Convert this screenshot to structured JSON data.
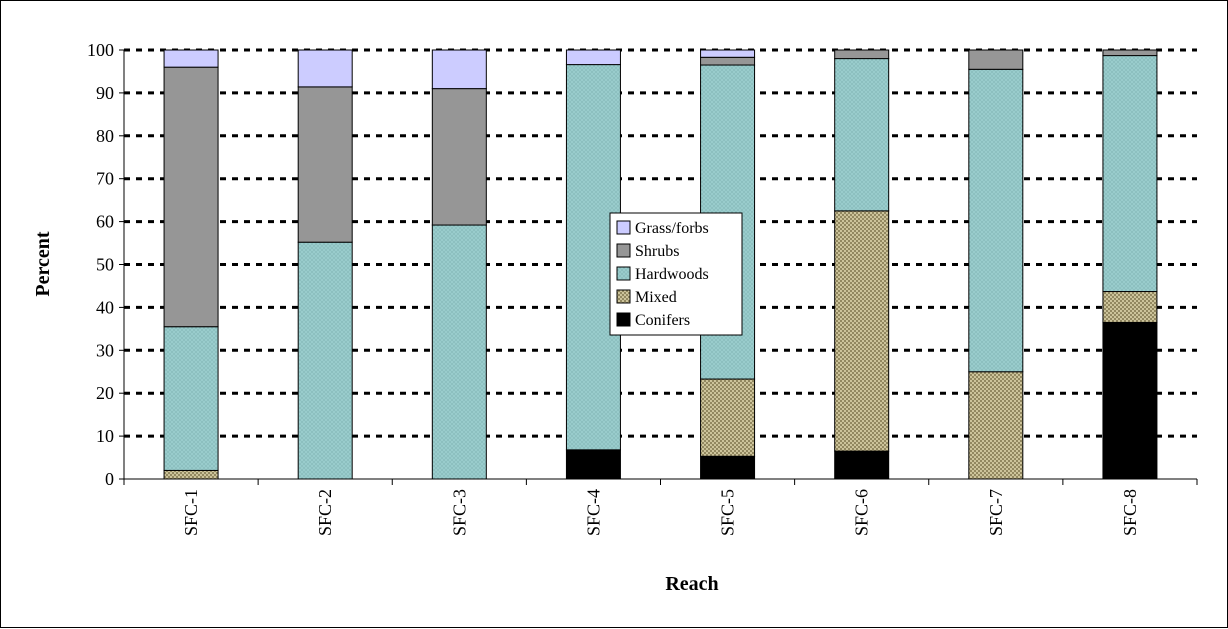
{
  "chart_data": {
    "type": "bar",
    "stacked": true,
    "xlabel": "Reach",
    "ylabel": "Percent",
    "ylim": [
      0,
      100
    ],
    "yticks": [
      0,
      10,
      20,
      30,
      40,
      50,
      60,
      70,
      80,
      90,
      100
    ],
    "grid": "horizontal-dotted",
    "legend_position": "center",
    "categories": [
      "SFC-1",
      "SFC-2",
      "SFC-3",
      "SFC-4",
      "SFC-5",
      "SFC-6",
      "SFC-7",
      "SFC-8"
    ],
    "series": [
      {
        "name": "Conifers",
        "color": "#000000",
        "pattern": "solid",
        "values": [
          0,
          0,
          0,
          6.8,
          5.3,
          6.5,
          0,
          36.5
        ]
      },
      {
        "name": "Mixed",
        "color": "#d8cfa6",
        "pattern": "crosshatch",
        "values": [
          2.0,
          0,
          0,
          0,
          18.0,
          56.0,
          25.0,
          7.2
        ]
      },
      {
        "name": "Hardwoods",
        "color": "#99cccc",
        "pattern": "dotted",
        "values": [
          33.5,
          55.2,
          59.2,
          89.8,
          73.2,
          35.5,
          70.5,
          55.0
        ]
      },
      {
        "name": "Shrubs",
        "color": "#969696",
        "pattern": "solid",
        "values": [
          60.5,
          36.2,
          31.8,
          0,
          1.8,
          2.0,
          4.5,
          1.3
        ]
      },
      {
        "name": "Grass/forbs",
        "color": "#ccccff",
        "pattern": "solid",
        "values": [
          4.0,
          8.6,
          9.0,
          3.4,
          1.7,
          0,
          0,
          0
        ]
      }
    ]
  }
}
